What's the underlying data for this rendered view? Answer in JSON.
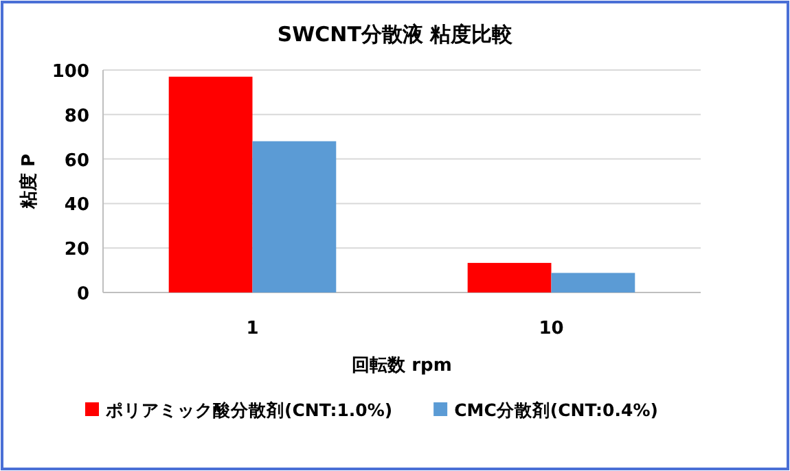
{
  "chart_data": {
    "type": "bar",
    "title": "SWCNT分散液 粘度比較",
    "xlabel": "回転数 rpm",
    "ylabel": "粘度 P",
    "categories": [
      "1",
      "10"
    ],
    "series": [
      {
        "name": "ポリアミック酸分散剤(CNT:1.0%)",
        "color": "#ff0000",
        "values": [
          97,
          13.3
        ]
      },
      {
        "name": "CMC分散剤(CNT:0.4%)",
        "color": "#5b9bd5",
        "values": [
          68,
          8.8
        ]
      }
    ],
    "ylim": [
      0,
      100
    ],
    "yticks": [
      0,
      20,
      40,
      60,
      80,
      100
    ],
    "grid": "y",
    "legend": "bottom"
  }
}
